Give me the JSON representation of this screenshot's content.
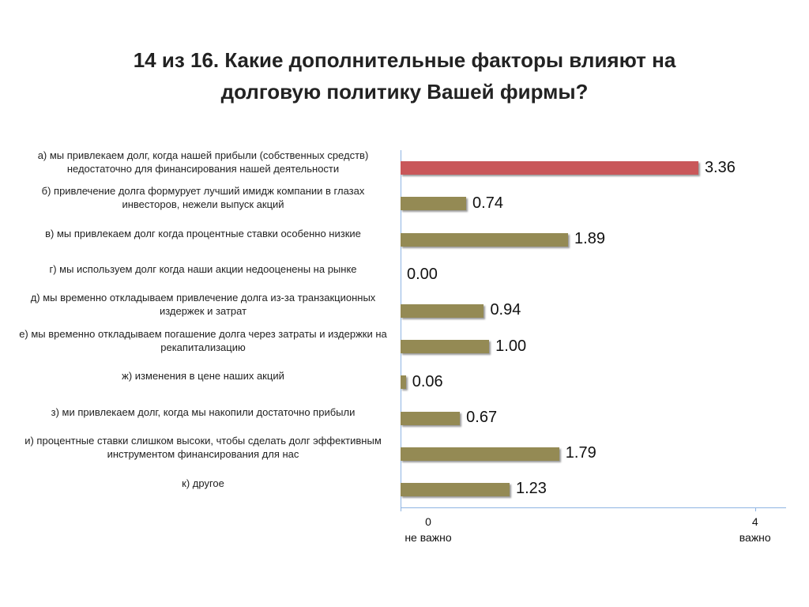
{
  "chart_data": {
    "type": "barh",
    "title": "14 из 16. Какие дополнительные факторы влияют на долговую политику Вашей фирмы?",
    "categories": [
      "а) мы привлекаем долг, когда нашей прибыли (собственных средств) недостаточно для финансирования нашей деятельности",
      "б) привлечение долга формурует лучший имидж компании в глазах инвесторов, нежели выпуск акций",
      "в) мы привлекаем долг когда процентные ставки особенно низкие",
      "г) мы используем долг когда наши акции недооценены на рынке",
      "д) мы временно откладываем привлечение долга из-за транзакционных издержек и затрат",
      "е) мы временно откладываем погашение долга через затраты и издержки на рекапитализацию",
      "ж) изменения в цене наших акций",
      "з) ми привлекаем долг, когда мы накопили достаточно прибыли",
      "и) процентные ставки слишком высоки, чтобы сделать долг эффективным инструментом финансирования для нас",
      "к) другое"
    ],
    "values": [
      3.36,
      0.74,
      1.89,
      0.0,
      0.94,
      1.0,
      0.06,
      0.67,
      1.79,
      1.23
    ],
    "value_labels": [
      "3.36",
      "0.74",
      "1.89",
      "0.00",
      "0.94",
      "1.00",
      "0.06",
      "0.67",
      "1.79",
      "1.23"
    ],
    "colors": [
      "#c9575a",
      "#948a54",
      "#948a54",
      "#948a54",
      "#948a54",
      "#948a54",
      "#948a54",
      "#948a54",
      "#948a54",
      "#948a54"
    ],
    "xlim": [
      0,
      4.35
    ],
    "xticks": [
      0,
      4
    ],
    "xtick_notes": [
      "не важно",
      "важно"
    ]
  }
}
